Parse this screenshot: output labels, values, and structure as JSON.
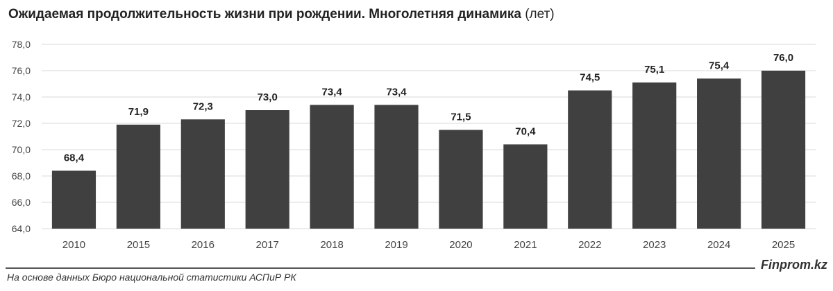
{
  "header": {
    "title_main": "Ожидаемая продолжительность жизни при рождении. Многолетняя динамика",
    "title_unit": "(лет)"
  },
  "footer": {
    "source": "На основе данных Бюро национальной статистики АСПиР РК",
    "brand": "Finprom.kz"
  },
  "colors": {
    "bar": "#404040",
    "grid": "#d9d9d9",
    "axis_text": "#444444"
  },
  "chart_data": {
    "type": "bar",
    "title": "Ожидаемая продолжительность жизни при рождении. Многолетняя динамика (лет)",
    "categories": [
      "2010",
      "2015",
      "2016",
      "2017",
      "2018",
      "2019",
      "2020",
      "2021",
      "2022",
      "2023",
      "2024",
      "2025"
    ],
    "values": [
      68.4,
      71.9,
      72.3,
      73.0,
      73.4,
      73.4,
      71.5,
      70.4,
      74.5,
      75.1,
      75.4,
      76.0
    ],
    "value_labels": [
      "68,4",
      "71,9",
      "72,3",
      "73,0",
      "73,4",
      "73,4",
      "71,5",
      "70,4",
      "74,5",
      "75,1",
      "75,4",
      "76,0"
    ],
    "yticks": [
      64,
      66,
      68,
      70,
      72,
      74,
      76,
      78
    ],
    "ytick_labels": [
      "64,0",
      "66,0",
      "68,0",
      "70,0",
      "72,0",
      "74,0",
      "76,0",
      "78,0"
    ],
    "ylim": [
      64,
      78
    ],
    "xlabel": "",
    "ylabel": "",
    "grid": true
  }
}
